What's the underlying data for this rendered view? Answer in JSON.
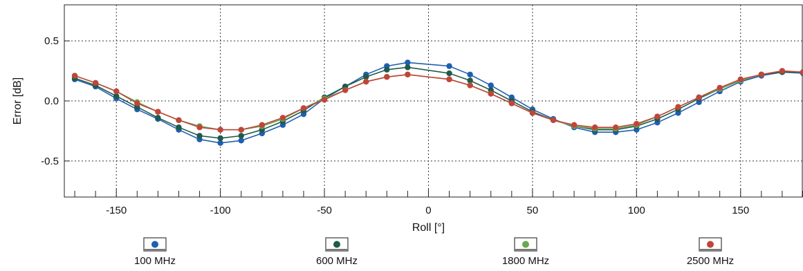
{
  "chart_data": {
    "type": "line",
    "title": "",
    "xlabel": "Roll [°]",
    "ylabel": "Error [dB]",
    "xlim": [
      -175,
      180
    ],
    "ylim": [
      -0.8,
      0.8
    ],
    "xticks": [
      -150,
      -100,
      -50,
      0,
      50,
      100,
      150
    ],
    "xtick_labels": [
      "-150",
      "-100",
      "-50",
      "0",
      "50",
      "100",
      "150"
    ],
    "yticks": [
      -0.5,
      0.0,
      0.5
    ],
    "ytick_labels": [
      "-0.5",
      "0.0",
      "0.5"
    ],
    "grid": true,
    "legend": "bottom",
    "x": [
      -170,
      -160,
      -150,
      -140,
      -130,
      -120,
      -110,
      -100,
      -90,
      -80,
      -70,
      -60,
      -50,
      -40,
      -30,
      -20,
      -10,
      10,
      20,
      30,
      40,
      50,
      60,
      70,
      80,
      90,
      100,
      110,
      120,
      130,
      140,
      150,
      160,
      170,
      180
    ],
    "series": [
      {
        "name": "100 MHz",
        "color": "#1f5fb0",
        "values": [
          0.18,
          0.12,
          0.02,
          -0.07,
          -0.15,
          -0.24,
          -0.32,
          -0.35,
          -0.33,
          -0.27,
          -0.2,
          -0.11,
          0.02,
          0.12,
          0.22,
          0.29,
          0.32,
          0.29,
          0.22,
          0.13,
          0.03,
          -0.07,
          -0.15,
          -0.22,
          -0.26,
          -0.26,
          -0.24,
          -0.18,
          -0.1,
          -0.01,
          0.08,
          0.16,
          0.21,
          0.24,
          0.23
        ]
      },
      {
        "name": "600 MHz",
        "color": "#1f5a4a",
        "values": [
          0.19,
          0.13,
          0.04,
          -0.05,
          -0.14,
          -0.22,
          -0.29,
          -0.31,
          -0.29,
          -0.24,
          -0.17,
          -0.08,
          0.03,
          0.12,
          0.2,
          0.26,
          0.28,
          0.23,
          0.17,
          0.09,
          0.0,
          -0.09,
          -0.16,
          -0.21,
          -0.24,
          -0.24,
          -0.21,
          -0.15,
          -0.07,
          0.02,
          0.1,
          0.17,
          0.22,
          0.24,
          0.24
        ]
      },
      {
        "name": "1800 MHz",
        "color": "#6aa84f",
        "values": [
          0.21,
          0.15,
          0.08,
          -0.01,
          -0.09,
          -0.16,
          -0.21,
          -0.24,
          -0.24,
          -0.21,
          -0.15,
          -0.06,
          0.02,
          0.09,
          0.16,
          0.2,
          0.22,
          0.18,
          0.13,
          0.06,
          -0.02,
          -0.1,
          -0.16,
          -0.21,
          -0.23,
          -0.23,
          -0.2,
          -0.13,
          -0.05,
          0.03,
          0.1,
          0.17,
          0.22,
          0.25,
          0.24
        ]
      },
      {
        "name": "2500 MHz",
        "color": "#c0453a",
        "values": [
          0.21,
          0.15,
          0.08,
          -0.02,
          -0.09,
          -0.16,
          -0.22,
          -0.24,
          -0.24,
          -0.2,
          -0.14,
          -0.06,
          0.01,
          0.09,
          0.16,
          0.2,
          0.22,
          0.18,
          0.13,
          0.06,
          -0.02,
          -0.1,
          -0.16,
          -0.2,
          -0.22,
          -0.22,
          -0.19,
          -0.13,
          -0.05,
          0.03,
          0.11,
          0.18,
          0.22,
          0.25,
          0.24
        ]
      }
    ]
  }
}
